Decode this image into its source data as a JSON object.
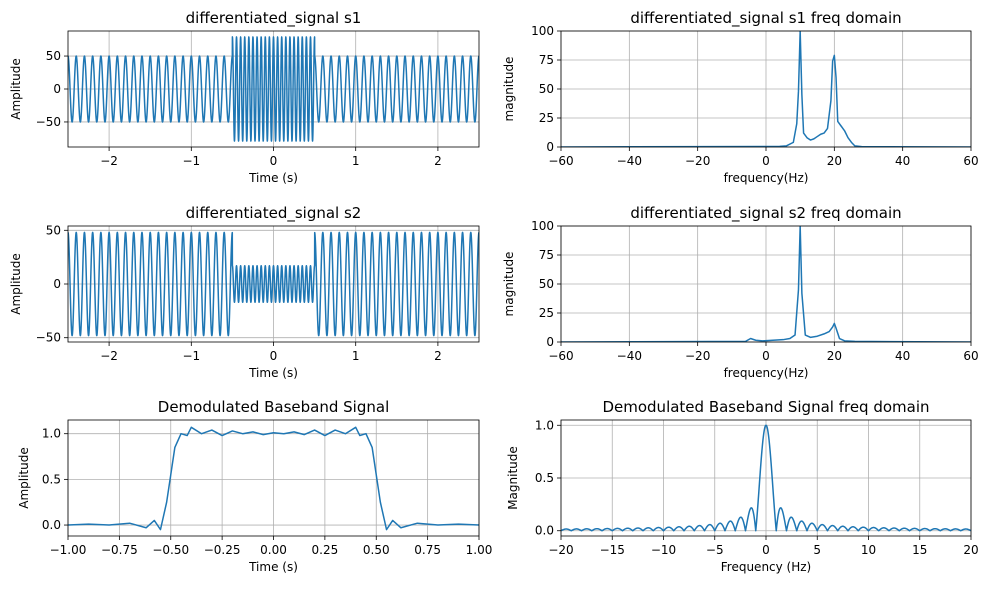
{
  "chart_data": [
    {
      "type": "line",
      "title": "differentiated_signal s1",
      "xlabel": "Time (s)",
      "ylabel": "Amplitude",
      "xlim": [
        -2.5,
        2.5
      ],
      "ylim": [
        -88,
        88
      ],
      "xticks": [
        -2,
        -1,
        0,
        1,
        2
      ],
      "yticks": [
        -50,
        0,
        50
      ],
      "grid": true,
      "signal": {
        "kind": "burst",
        "base_freq_hz": 10,
        "base_amplitude": 50,
        "burst_freq_hz": 20,
        "burst_amplitude": 79,
        "burst_interval": [
          -0.5,
          0.5
        ]
      },
      "series": [
        {
          "values": []
        }
      ]
    },
    {
      "type": "line",
      "title": "differentiated_signal s1 freq domain",
      "xlabel": "frequency(Hz)",
      "ylabel": "magnitude",
      "xlim": [
        -60,
        60
      ],
      "ylim": [
        0,
        100
      ],
      "xticks": [
        -60,
        -40,
        -20,
        0,
        20,
        40,
        60
      ],
      "yticks": [
        0,
        25,
        50,
        75,
        100
      ],
      "grid": true,
      "series": [
        {
          "x": [
            -60,
            4,
            6,
            8,
            9,
            9.5,
            10,
            10.5,
            11,
            12,
            13,
            14,
            15,
            16,
            17,
            18,
            19,
            19.5,
            20,
            20.5,
            21,
            22,
            23,
            24,
            25,
            26,
            28,
            60
          ],
          "values": [
            0,
            0.5,
            1,
            4,
            20,
            48,
            100,
            45,
            12,
            8,
            6,
            7,
            9,
            11,
            12,
            16,
            40,
            74,
            79,
            60,
            22,
            18,
            14,
            8,
            4,
            1,
            0.3,
            0
          ]
        }
      ]
    },
    {
      "type": "line",
      "title": "differentiated_signal s2",
      "xlabel": "Time (s)",
      "ylabel": "Amplitude",
      "xlim": [
        -2.5,
        2.5
      ],
      "ylim": [
        -54,
        54
      ],
      "xticks": [
        -2,
        -1,
        0,
        1,
        2
      ],
      "yticks": [
        -50,
        0,
        50
      ],
      "grid": true,
      "signal": {
        "kind": "burst",
        "base_freq_hz": 10,
        "base_amplitude": 48,
        "burst_freq_hz": 20,
        "burst_amplitude": 17,
        "burst_interval": [
          -0.5,
          0.5
        ]
      },
      "series": [
        {
          "values": []
        }
      ]
    },
    {
      "type": "line",
      "title": "differentiated_signal s2 freq domain",
      "xlabel": "frequency(Hz)",
      "ylabel": "magnitude",
      "xlim": [
        -60,
        60
      ],
      "ylim": [
        0,
        100
      ],
      "xticks": [
        -60,
        -40,
        -20,
        0,
        20,
        40,
        60
      ],
      "yticks": [
        0,
        25,
        50,
        75,
        100
      ],
      "grid": true,
      "series": [
        {
          "x": [
            -60,
            -6,
            -4.5,
            -3,
            -1,
            2,
            5,
            7,
            8.5,
            9.5,
            10,
            10.5,
            11.5,
            13,
            15,
            17,
            18.5,
            19.5,
            20,
            20.5,
            21.5,
            23,
            26,
            60
          ],
          "values": [
            0,
            0.5,
            3,
            1.5,
            1,
            1.5,
            2,
            3,
            6,
            45,
            100,
            42,
            6,
            4,
            5,
            7,
            9,
            13,
            16,
            12,
            3,
            1,
            0.5,
            0
          ]
        }
      ]
    },
    {
      "type": "line",
      "title": "Demodulated Baseband Signal",
      "xlabel": "Time (s)",
      "ylabel": "Amplitude",
      "xlim": [
        -1.0,
        1.0
      ],
      "ylim": [
        -0.12,
        1.15
      ],
      "xticks": [
        -1.0,
        -0.75,
        -0.5,
        -0.25,
        0.0,
        0.25,
        0.5,
        0.75,
        1.0
      ],
      "yticks": [
        0.0,
        0.5,
        1.0
      ],
      "grid": true,
      "series": [
        {
          "x": [
            -1.0,
            -0.9,
            -0.8,
            -0.7,
            -0.62,
            -0.58,
            -0.55,
            -0.52,
            -0.5,
            -0.48,
            -0.45,
            -0.42,
            -0.4,
            -0.35,
            -0.3,
            -0.25,
            -0.2,
            -0.15,
            -0.1,
            -0.05,
            0.0,
            0.05,
            0.1,
            0.15,
            0.2,
            0.25,
            0.3,
            0.35,
            0.4,
            0.42,
            0.45,
            0.48,
            0.5,
            0.52,
            0.55,
            0.58,
            0.62,
            0.7,
            0.8,
            0.9,
            1.0
          ],
          "values": [
            0.0,
            0.01,
            0.0,
            0.02,
            -0.03,
            0.05,
            -0.05,
            0.25,
            0.55,
            0.85,
            1.0,
            0.98,
            1.07,
            1.0,
            1.04,
            0.98,
            1.03,
            1.0,
            1.02,
            0.99,
            1.01,
            1.0,
            1.02,
            0.99,
            1.04,
            0.98,
            1.04,
            1.0,
            1.07,
            0.98,
            1.0,
            0.85,
            0.55,
            0.25,
            -0.05,
            0.05,
            -0.03,
            0.02,
            0.0,
            0.01,
            0.0
          ]
        }
      ]
    },
    {
      "type": "line",
      "title": "Demodulated Baseband Signal freq domain",
      "xlabel": "Frequency (Hz)",
      "ylabel": "Magnitude",
      "xlim": [
        -20,
        20
      ],
      "ylim": [
        -0.05,
        1.05
      ],
      "xticks": [
        -20,
        -15,
        -10,
        -5,
        0,
        5,
        10,
        15,
        20
      ],
      "yticks": [
        0.0,
        0.5,
        1.0
      ],
      "grid": true,
      "signal": {
        "kind": "sinc",
        "main_lobe_width_hz": 2
      },
      "series": [
        {
          "values": []
        }
      ]
    }
  ]
}
